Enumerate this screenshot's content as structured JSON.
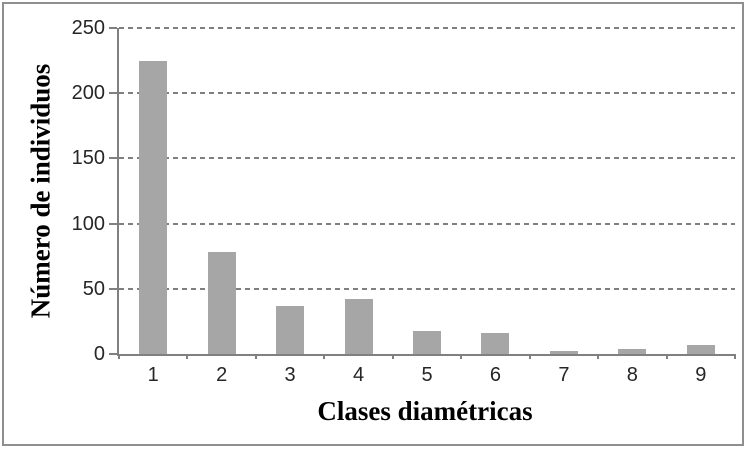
{
  "chart_data": {
    "type": "bar",
    "categories": [
      "1",
      "2",
      "3",
      "4",
      "5",
      "6",
      "7",
      "8",
      "9"
    ],
    "values": [
      225,
      78,
      37,
      42,
      18,
      16,
      2,
      4,
      7
    ],
    "title": "",
    "xlabel": "Clases diamétricas",
    "ylabel": "Número de individuos",
    "ylim": [
      0,
      250
    ],
    "yticks": [
      0,
      50,
      100,
      150,
      200,
      250
    ],
    "grid": "horizontal-dashed",
    "legend": "none",
    "bar_color": "#a6a6a6",
    "gridline_color": "#7f7f7f",
    "axis_color": "#808080",
    "tick_label_color": "#262626",
    "frame_color": "#8f8f8f"
  }
}
